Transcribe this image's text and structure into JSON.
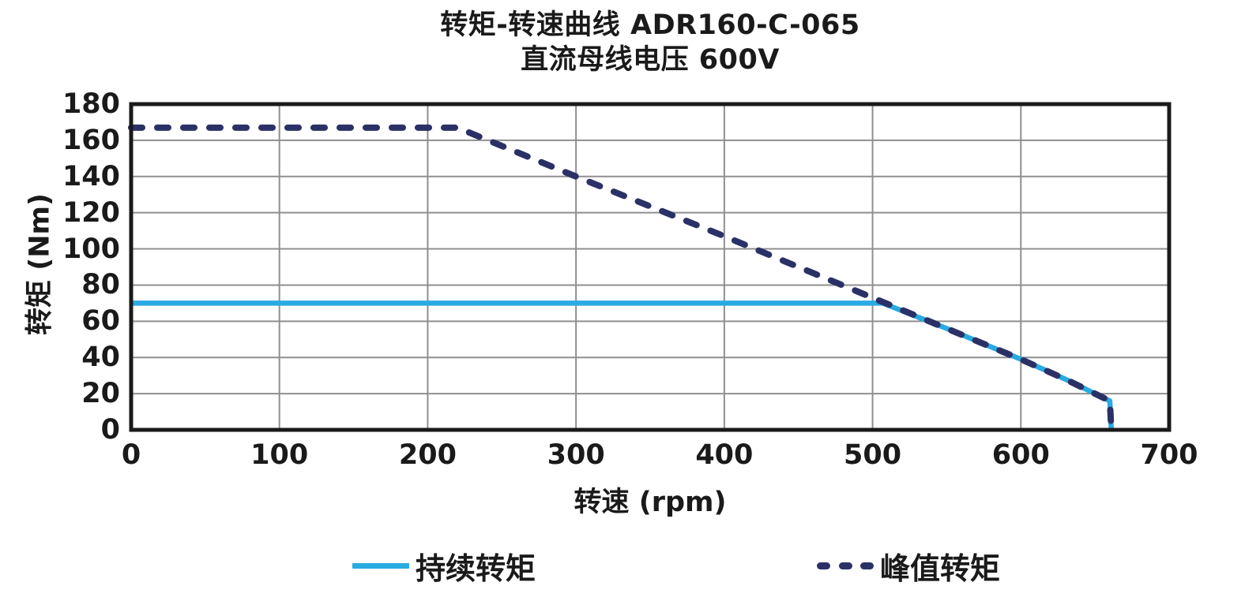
{
  "chart_data": {
    "type": "line",
    "title": "转矩-转速曲线 ADR160-C-065",
    "subtitle": "直流母线电压 600V",
    "xlabel": "转速 (rpm)",
    "ylabel": "转矩 (Nm)",
    "xlim": [
      0,
      700
    ],
    "ylim": [
      0,
      180
    ],
    "x_ticks": [
      0,
      100,
      200,
      300,
      400,
      500,
      600,
      700
    ],
    "y_ticks": [
      0,
      20,
      40,
      60,
      80,
      100,
      120,
      140,
      160,
      180
    ],
    "grid": true,
    "legend_position": "bottom",
    "series": [
      {
        "name": "持续转矩",
        "style": "solid",
        "color": "#29ABE2",
        "points": [
          [
            0,
            70
          ],
          [
            507,
            70
          ],
          [
            550,
            56
          ],
          [
            600,
            39
          ],
          [
            630,
            28
          ],
          [
            650,
            20
          ],
          [
            660,
            16
          ],
          [
            661,
            0
          ]
        ]
      },
      {
        "name": "峰值转矩",
        "style": "dashed",
        "color": "#2B3166",
        "points": [
          [
            0,
            167
          ],
          [
            220,
            167
          ],
          [
            300,
            140
          ],
          [
            400,
            107
          ],
          [
            500,
            73
          ],
          [
            550,
            56
          ],
          [
            600,
            39
          ],
          [
            630,
            28
          ],
          [
            650,
            20
          ],
          [
            660,
            16
          ],
          [
            661,
            0
          ]
        ]
      }
    ],
    "grid_color": "#8F8F8F",
    "border_color": "#1A1A1A",
    "text_color": "#1A1A1A"
  }
}
